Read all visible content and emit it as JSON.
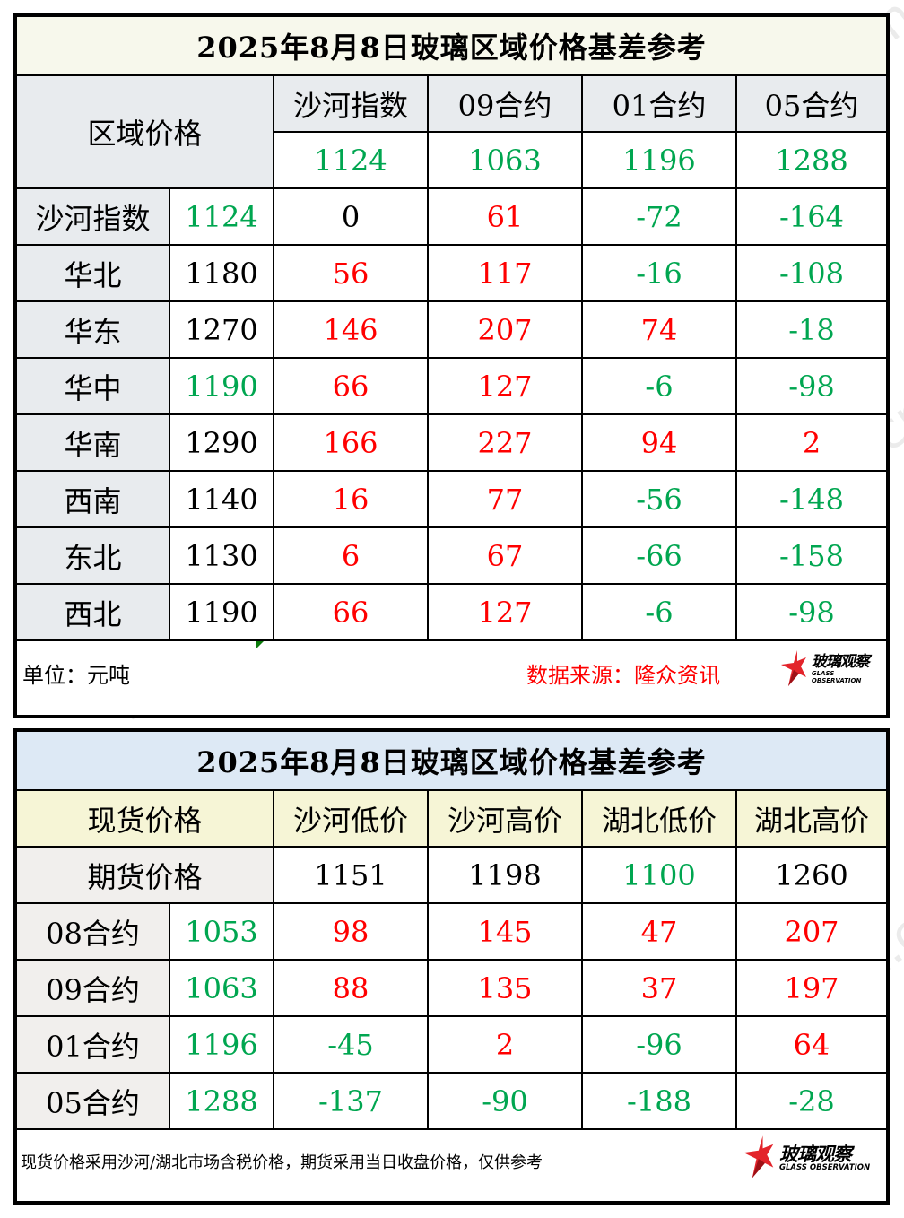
{
  "table1": {
    "title": "2025年8月8日玻璃区域价格基差参考",
    "corner_label": "区域价格",
    "columns": [
      {
        "label": "沙河指数",
        "value": "1124",
        "tone": "neg"
      },
      {
        "label": "09合约",
        "value": "1063",
        "tone": "neg"
      },
      {
        "label": "01合约",
        "value": "1196",
        "tone": "neg"
      },
      {
        "label": "05合约",
        "value": "1288",
        "tone": "neg"
      }
    ],
    "rows": [
      {
        "region": "沙河指数",
        "price": "1124",
        "price_tone": "neg",
        "cells": [
          [
            "0",
            "neu"
          ],
          [
            "61",
            "pos"
          ],
          [
            "-72",
            "neg"
          ],
          [
            "-164",
            "neg"
          ]
        ]
      },
      {
        "region": "华北",
        "price": "1180",
        "price_tone": "neu",
        "cells": [
          [
            "56",
            "pos"
          ],
          [
            "117",
            "pos"
          ],
          [
            "-16",
            "neg"
          ],
          [
            "-108",
            "neg"
          ]
        ]
      },
      {
        "region": "华东",
        "price": "1270",
        "price_tone": "neu",
        "cells": [
          [
            "146",
            "pos"
          ],
          [
            "207",
            "pos"
          ],
          [
            "74",
            "pos"
          ],
          [
            "-18",
            "neg"
          ]
        ]
      },
      {
        "region": "华中",
        "price": "1190",
        "price_tone": "neg",
        "cells": [
          [
            "66",
            "pos"
          ],
          [
            "127",
            "pos"
          ],
          [
            "-6",
            "neg"
          ],
          [
            "-98",
            "neg"
          ]
        ]
      },
      {
        "region": "华南",
        "price": "1290",
        "price_tone": "neu",
        "cells": [
          [
            "166",
            "pos"
          ],
          [
            "227",
            "pos"
          ],
          [
            "94",
            "pos"
          ],
          [
            "2",
            "pos"
          ]
        ]
      },
      {
        "region": "西南",
        "price": "1140",
        "price_tone": "neu",
        "cells": [
          [
            "16",
            "pos"
          ],
          [
            "77",
            "pos"
          ],
          [
            "-56",
            "neg"
          ],
          [
            "-148",
            "neg"
          ]
        ]
      },
      {
        "region": "东北",
        "price": "1130",
        "price_tone": "neu",
        "cells": [
          [
            "6",
            "pos"
          ],
          [
            "67",
            "pos"
          ],
          [
            "-66",
            "neg"
          ],
          [
            "-158",
            "neg"
          ]
        ]
      },
      {
        "region": "西北",
        "price": "1190",
        "price_tone": "neu",
        "cells": [
          [
            "66",
            "pos"
          ],
          [
            "127",
            "pos"
          ],
          [
            "-6",
            "neg"
          ],
          [
            "-98",
            "neg"
          ]
        ]
      }
    ],
    "footer": {
      "unit": "单位：元吨",
      "source": "数据来源：隆众资讯"
    }
  },
  "table2": {
    "title": "2025年8月8日玻璃区域价格基差参考",
    "spot_label": "现货价格",
    "futures_label": "期货价格",
    "columns": [
      {
        "label": "沙河低价",
        "value": "1151",
        "tone": "neu"
      },
      {
        "label": "沙河高价",
        "value": "1198",
        "tone": "neu"
      },
      {
        "label": "湖北低价",
        "value": "1100",
        "tone": "neg"
      },
      {
        "label": "湖北高价",
        "value": "1260",
        "tone": "neu"
      }
    ],
    "rows": [
      {
        "contract": "08合约",
        "price": "1053",
        "cells": [
          [
            "98",
            "pos"
          ],
          [
            "145",
            "pos"
          ],
          [
            "47",
            "pos"
          ],
          [
            "207",
            "pos"
          ]
        ]
      },
      {
        "contract": "09合约",
        "price": "1063",
        "cells": [
          [
            "88",
            "pos"
          ],
          [
            "135",
            "pos"
          ],
          [
            "37",
            "pos"
          ],
          [
            "197",
            "pos"
          ]
        ]
      },
      {
        "contract": "01合约",
        "price": "1196",
        "cells": [
          [
            "-45",
            "neg"
          ],
          [
            "2",
            "pos"
          ],
          [
            "-96",
            "neg"
          ],
          [
            "64",
            "pos"
          ]
        ]
      },
      {
        "contract": "05合约",
        "price": "1288",
        "cells": [
          [
            "-137",
            "neg"
          ],
          [
            "-90",
            "neg"
          ],
          [
            "-188",
            "neg"
          ],
          [
            "-28",
            "neg"
          ]
        ]
      }
    ],
    "footer": {
      "note": "现货价格采用沙河/湖北市场含税价格，期货采用当日收盘价格，仅供参考"
    }
  },
  "logo": {
    "cn": "玻璃观察",
    "en": "GLASS OBSERVATION",
    "icon": "red-star-icon"
  },
  "watermark": "www.glass.sh.cn",
  "colors": {
    "positive": "#ff0000",
    "negative": "#00a650",
    "header_gray": "#e8ebee",
    "header_yellow": "#f6f5d6",
    "title1_bg": "#f7f8ec",
    "title2_bg": "#dde9f5"
  }
}
